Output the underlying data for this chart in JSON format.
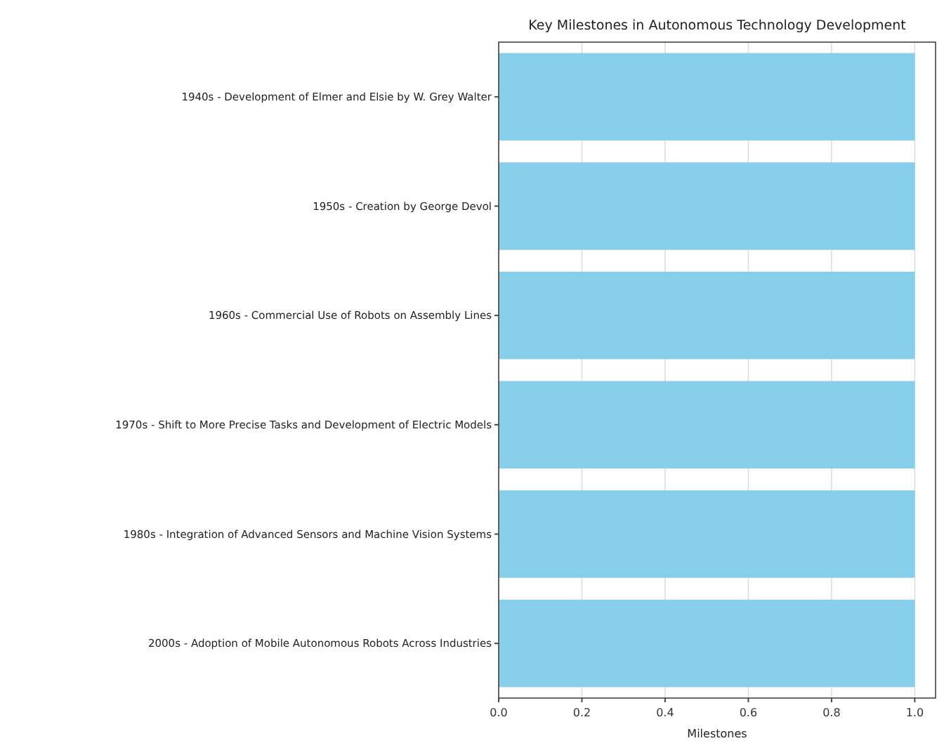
{
  "chart_data": {
    "type": "bar",
    "orientation": "horizontal",
    "title": "Key Milestones in Autonomous Technology Development",
    "xlabel": "Milestones",
    "categories": [
      "1940s - Development of Elmer and Elsie by W. Grey Walter",
      "1950s - Creation by George Devol",
      "1960s - Commercial Use of Robots on Assembly Lines",
      "1970s - Shift to More Precise Tasks and Development of Electric Models",
      "1980s - Integration of Advanced Sensors and Machine Vision Systems",
      "2000s - Adoption of Mobile Autonomous Robots Across Industries"
    ],
    "values": [
      1,
      1,
      1,
      1,
      1,
      1
    ],
    "color": "#87ceeb",
    "xlim": [
      0,
      1.05
    ],
    "xticks": [
      {
        "value": 0,
        "label": "0.0"
      },
      0.2,
      0.4,
      0.6,
      0.8,
      {
        "value": 1,
        "label": "1.0"
      }
    ],
    "grid": "x"
  }
}
